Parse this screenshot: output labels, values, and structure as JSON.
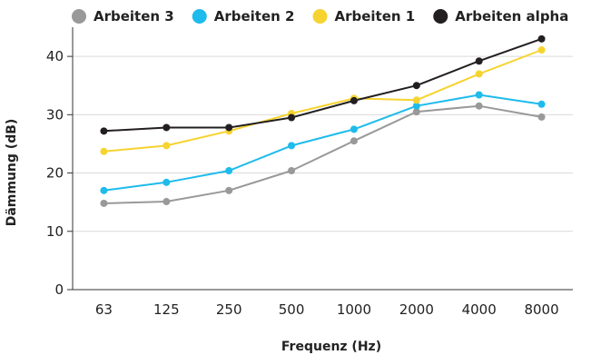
{
  "chart_data": {
    "type": "line",
    "categories": [
      "63",
      "125",
      "250",
      "500",
      "1000",
      "2000",
      "4000",
      "8000"
    ],
    "xlabel": "Frequenz (Hz)",
    "ylabel": "Dämmung (dB)",
    "ylim": [
      0,
      45
    ],
    "yticks": [
      0,
      10,
      20,
      30,
      40
    ],
    "grid": "horizontal",
    "legend_position": "top",
    "series": [
      {
        "name": "Arbeiten 3",
        "color": "#999999",
        "values": [
          14.8,
          15.1,
          17.0,
          20.4,
          25.5,
          30.5,
          31.5,
          29.6
        ]
      },
      {
        "name": "Arbeiten 2",
        "color": "#1ebbec",
        "values": [
          17.0,
          18.4,
          20.4,
          24.7,
          27.5,
          31.5,
          33.4,
          31.8
        ]
      },
      {
        "name": "Arbeiten 1",
        "color": "#f7d330",
        "values": [
          23.7,
          24.7,
          27.2,
          30.2,
          32.8,
          32.5,
          37.0,
          41.1
        ]
      },
      {
        "name": "Arbeiten alpha",
        "color": "#231f20",
        "values": [
          27.2,
          27.8,
          27.8,
          29.5,
          32.4,
          35.0,
          39.2,
          43.0
        ]
      }
    ]
  }
}
